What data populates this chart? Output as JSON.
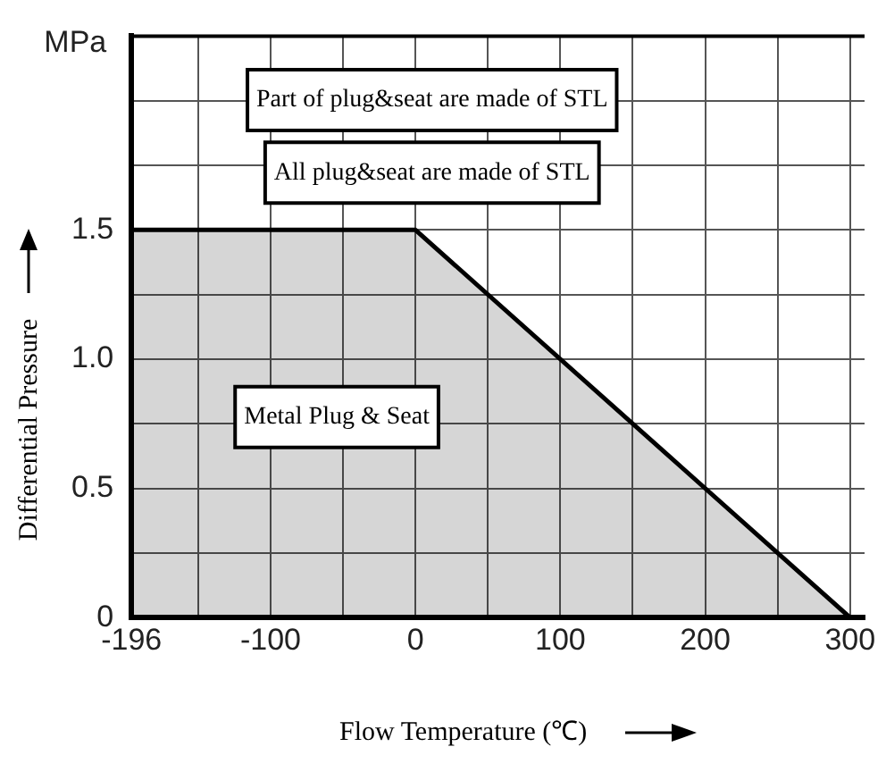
{
  "chart_data": {
    "type": "area",
    "xlabel": "Flow Temperature (℃)",
    "ylabel": "Differential Pressure",
    "x": [
      -196,
      0,
      300
    ],
    "values": [
      1.5,
      1.5,
      0
    ],
    "color": "#000000",
    "xlim": [
      -196,
      310
    ],
    "xticks": [
      -196,
      {
        "value": -150,
        "label": null
      },
      -100,
      {
        "value": -50,
        "label": null
      },
      0,
      {
        "value": 50,
        "label": null
      },
      100,
      {
        "value": 150,
        "label": null
      },
      200,
      {
        "value": 250,
        "label": null
      },
      300
    ],
    "ylim": [
      0,
      2.25
    ],
    "yticks": [
      0,
      {
        "value": 0.25,
        "label": null
      },
      0.5,
      {
        "value": 0.75,
        "label": null
      },
      {
        "value": 1,
        "label": "1.0"
      },
      {
        "value": 1.25,
        "label": null
      },
      1.5,
      {
        "value": 1.75,
        "label": null
      },
      {
        "value": 2,
        "label": null
      },
      {
        "value": 2.25,
        "label": null
      }
    ],
    "grid": true,
    "line_style": "solid",
    "marker": "none",
    "annotations": [
      "MPa",
      "Part of plug&seat are made of STL",
      "All plug&seat are made of STL",
      "Metal Plug & Seat"
    ]
  }
}
